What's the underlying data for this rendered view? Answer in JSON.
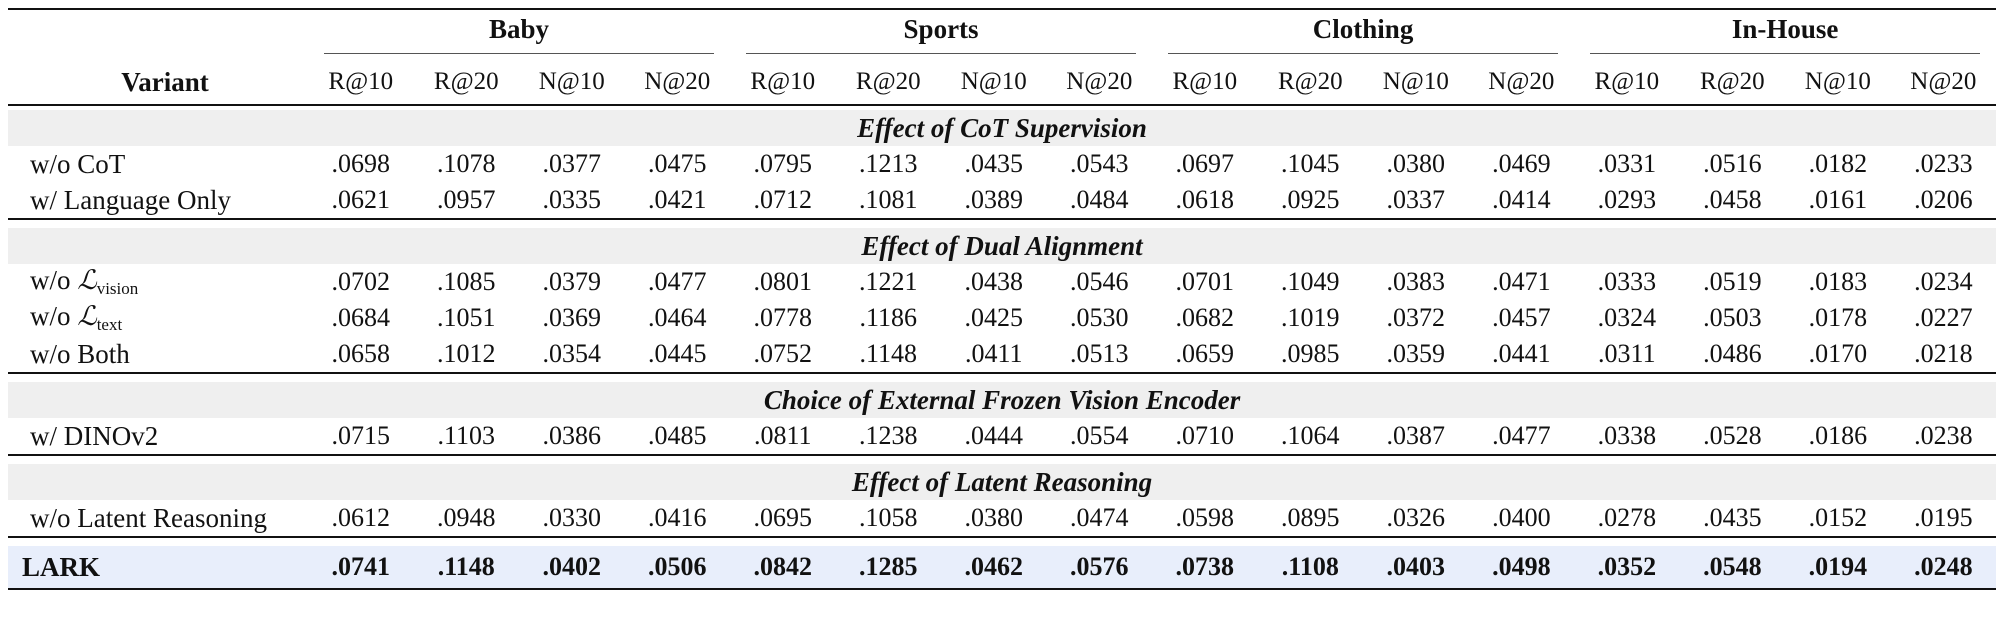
{
  "header": {
    "variant_label": "Variant",
    "groups": [
      "Baby",
      "Sports",
      "Clothing",
      "In-House"
    ],
    "metrics": [
      "R@10",
      "R@20",
      "N@10",
      "N@20"
    ]
  },
  "sections": [
    {
      "title": "Effect of CoT Supervision",
      "rows": [
        {
          "label": "w/o CoT",
          "values": [
            ".0698",
            ".1078",
            ".0377",
            ".0475",
            ".0795",
            ".1213",
            ".0435",
            ".0543",
            ".0697",
            ".1045",
            ".0380",
            ".0469",
            ".0331",
            ".0516",
            ".0182",
            ".0233"
          ]
        },
        {
          "label": "w/ Language Only",
          "values": [
            ".0621",
            ".0957",
            ".0335",
            ".0421",
            ".0712",
            ".1081",
            ".0389",
            ".0484",
            ".0618",
            ".0925",
            ".0337",
            ".0414",
            ".0293",
            ".0458",
            ".0161",
            ".0206"
          ]
        }
      ]
    },
    {
      "title": "Effect of Dual Alignment",
      "rows": [
        {
          "label": "w/o ",
          "math_symbol": "ℒ",
          "subscript": "vision",
          "values": [
            ".0702",
            ".1085",
            ".0379",
            ".0477",
            ".0801",
            ".1221",
            ".0438",
            ".0546",
            ".0701",
            ".1049",
            ".0383",
            ".0471",
            ".0333",
            ".0519",
            ".0183",
            ".0234"
          ]
        },
        {
          "label": "w/o ",
          "math_symbol": "ℒ",
          "subscript": "text",
          "values": [
            ".0684",
            ".1051",
            ".0369",
            ".0464",
            ".0778",
            ".1186",
            ".0425",
            ".0530",
            ".0682",
            ".1019",
            ".0372",
            ".0457",
            ".0324",
            ".0503",
            ".0178",
            ".0227"
          ]
        },
        {
          "label": "w/o Both",
          "values": [
            ".0658",
            ".1012",
            ".0354",
            ".0445",
            ".0752",
            ".1148",
            ".0411",
            ".0513",
            ".0659",
            ".0985",
            ".0359",
            ".0441",
            ".0311",
            ".0486",
            ".0170",
            ".0218"
          ]
        }
      ]
    },
    {
      "title": "Choice of External Frozen Vision Encoder",
      "rows": [
        {
          "label": "w/ DINOv2",
          "values": [
            ".0715",
            ".1103",
            ".0386",
            ".0485",
            ".0811",
            ".1238",
            ".0444",
            ".0554",
            ".0710",
            ".1064",
            ".0387",
            ".0477",
            ".0338",
            ".0528",
            ".0186",
            ".0238"
          ]
        }
      ]
    },
    {
      "title": "Effect of Latent Reasoning",
      "rows": [
        {
          "label": "w/o Latent Reasoning",
          "values": [
            ".0612",
            ".0948",
            ".0330",
            ".0416",
            ".0695",
            ".1058",
            ".0380",
            ".0474",
            ".0598",
            ".0895",
            ".0326",
            ".0400",
            ".0278",
            ".0435",
            ".0152",
            ".0195"
          ]
        }
      ]
    }
  ],
  "final_row": {
    "label": "LARK",
    "values": [
      ".0741",
      ".1148",
      ".0402",
      ".0506",
      ".0842",
      ".1285",
      ".0462",
      ".0576",
      ".0738",
      ".1108",
      ".0403",
      ".0498",
      ".0352",
      ".0548",
      ".0194",
      ".0248"
    ]
  },
  "colors": {
    "section_band": "#efefef",
    "final_band": "#e8eefb"
  }
}
